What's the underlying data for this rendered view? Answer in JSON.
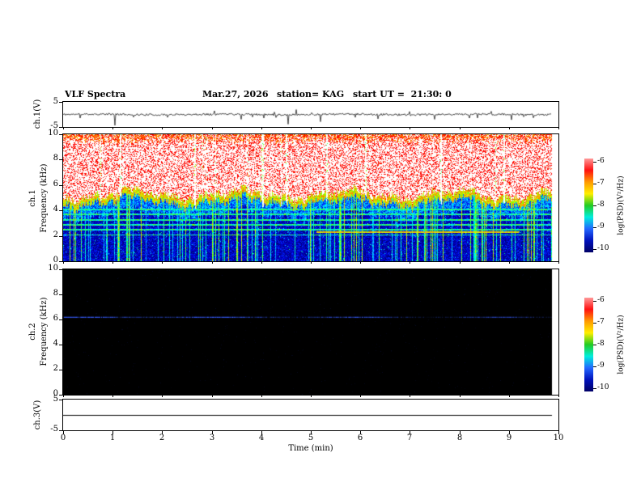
{
  "header": {
    "title": "VLF Spectra",
    "date": "Mar.27, 2026",
    "station": "station= KAG",
    "start_ut": "start UT =  21:30: 0"
  },
  "xaxis": {
    "label": "Time (min)",
    "ticks": [
      "0",
      "1",
      "2",
      "3",
      "4",
      "5",
      "6",
      "7",
      "8",
      "9",
      "10"
    ]
  },
  "panels": {
    "ch1v": {
      "name": "ch.1(V)",
      "ytop": "5",
      "ybottom": "-5"
    },
    "ch1spec": {
      "name": "ch.1",
      "ylabel": "Frequency (kHz)",
      "yticks": [
        "10",
        "8",
        "6",
        "4",
        "2",
        "0"
      ]
    },
    "ch2spec": {
      "name": "ch.2",
      "ylabel": "Frequency (kHz)",
      "yticks": [
        "10",
        "8",
        "6",
        "4",
        "2",
        "0"
      ]
    },
    "ch3v": {
      "name": "ch.3(V)",
      "ytop": "5",
      "ybottom": "-5"
    }
  },
  "colorbar": {
    "label": "log(PSD)(V²/Hz)",
    "ticks": [
      "-6",
      "-7",
      "-8",
      "-9",
      "-10"
    ],
    "gradient": [
      "#ff9999",
      "#ff1111",
      "#ff9900",
      "#ffee00",
      "#22cc22",
      "#00eedd",
      "#2266ff",
      "#0011bb",
      "#000066"
    ]
  },
  "chart_data": [
    {
      "panel": "ch1_voltage",
      "type": "line",
      "ylabel": "ch.1(V)",
      "ylim": [
        -5,
        5
      ],
      "xlim": [
        0,
        10
      ],
      "description": "Noisy voltage waveform near 0 V with impulsive sferic spikes",
      "baseline_v": 0,
      "noise_amp_v": 0.4,
      "spike_times_min": [
        0.35,
        1.05,
        2.1,
        3.05,
        3.6,
        4.05,
        4.55,
        4.7,
        5.2,
        5.9,
        6.35,
        7.0,
        7.5,
        8.2,
        8.65,
        9.05,
        9.5
      ],
      "spike_amps_v": [
        -1.5,
        -4.5,
        -1.2,
        1.5,
        -2.0,
        -1.5,
        -4.0,
        2.0,
        -3.0,
        -1.2,
        -1.8,
        1.2,
        -2.0,
        -1.5,
        1.3,
        -2.2,
        -1.4
      ],
      "data_end_min": 9.87,
      "seed": 11
    },
    {
      "panel": "ch1_spectrogram",
      "type": "heatmap",
      "xlim": [
        0,
        10
      ],
      "ylim": [
        0,
        10
      ],
      "zlim": [
        -10,
        -6
      ],
      "xlabel": "Time (min)",
      "ylabel": "Frequency (kHz)",
      "zlabel": "log(PSD)(V²/Hz)",
      "description": "Intense broadband VLF hiss (saturated white/red) from ~4.7 kHz up to 10 kHz with fluctuating lower cutoff; dark-blue background below with cyan/green horizontal interference bands, vertical green sferic lines, short vertical white dropouts, and an orange-red tone near 2.3 kHz between ~5.1 and ~9.2 min",
      "seed": 42,
      "features": {
        "broadband_hiss": {
          "lower_cutoff_khz": 4.7,
          "cutoff_jitter_khz": 0.65,
          "upper_khz": 10,
          "core_level": -6,
          "fringe_level": -7.2
        },
        "dropout_times_min": [
          1.15,
          2.65,
          4.02,
          4.5,
          5.32,
          6.1,
          7.62,
          8.9
        ],
        "horizontal_bands_khz": [
          2.1,
          2.5,
          2.9,
          3.3,
          3.7,
          4.1
        ],
        "band_level": -8.4,
        "tone": {
          "freq_khz": 2.3,
          "start_min": 5.1,
          "end_min": 9.2,
          "level": -7.1
        },
        "sferic_fraction": 0.18,
        "background_level": -9.9,
        "data_end_min": 9.87
      }
    },
    {
      "panel": "ch2_spectrogram",
      "type": "heatmap",
      "xlim": [
        0,
        10
      ],
      "ylim": [
        0,
        10
      ],
      "zlim": [
        -10,
        -6
      ],
      "xlabel": "Time (min)",
      "ylabel": "Frequency (kHz)",
      "zlabel": "log(PSD)(V²/Hz)",
      "description": "Nearly black (at/below noise floor) panel with one faint blue horizontal line near 6.2 kHz, brighter during the first few minutes, plus very sparse dim blue speckles",
      "seed": 7,
      "features": {
        "background_level": -10,
        "line": {
          "freq_khz": 6.2,
          "level": -8.6
        },
        "data_end_min": 9.87
      }
    },
    {
      "panel": "ch3_voltage",
      "type": "line",
      "ylabel": "ch.3(V)",
      "ylim": [
        -5,
        5
      ],
      "xlim": [
        0,
        10
      ],
      "description": "Flat line at 0 V (no signal)",
      "value_v": 0,
      "data_end_min": 9.87,
      "seed": 3
    }
  ]
}
